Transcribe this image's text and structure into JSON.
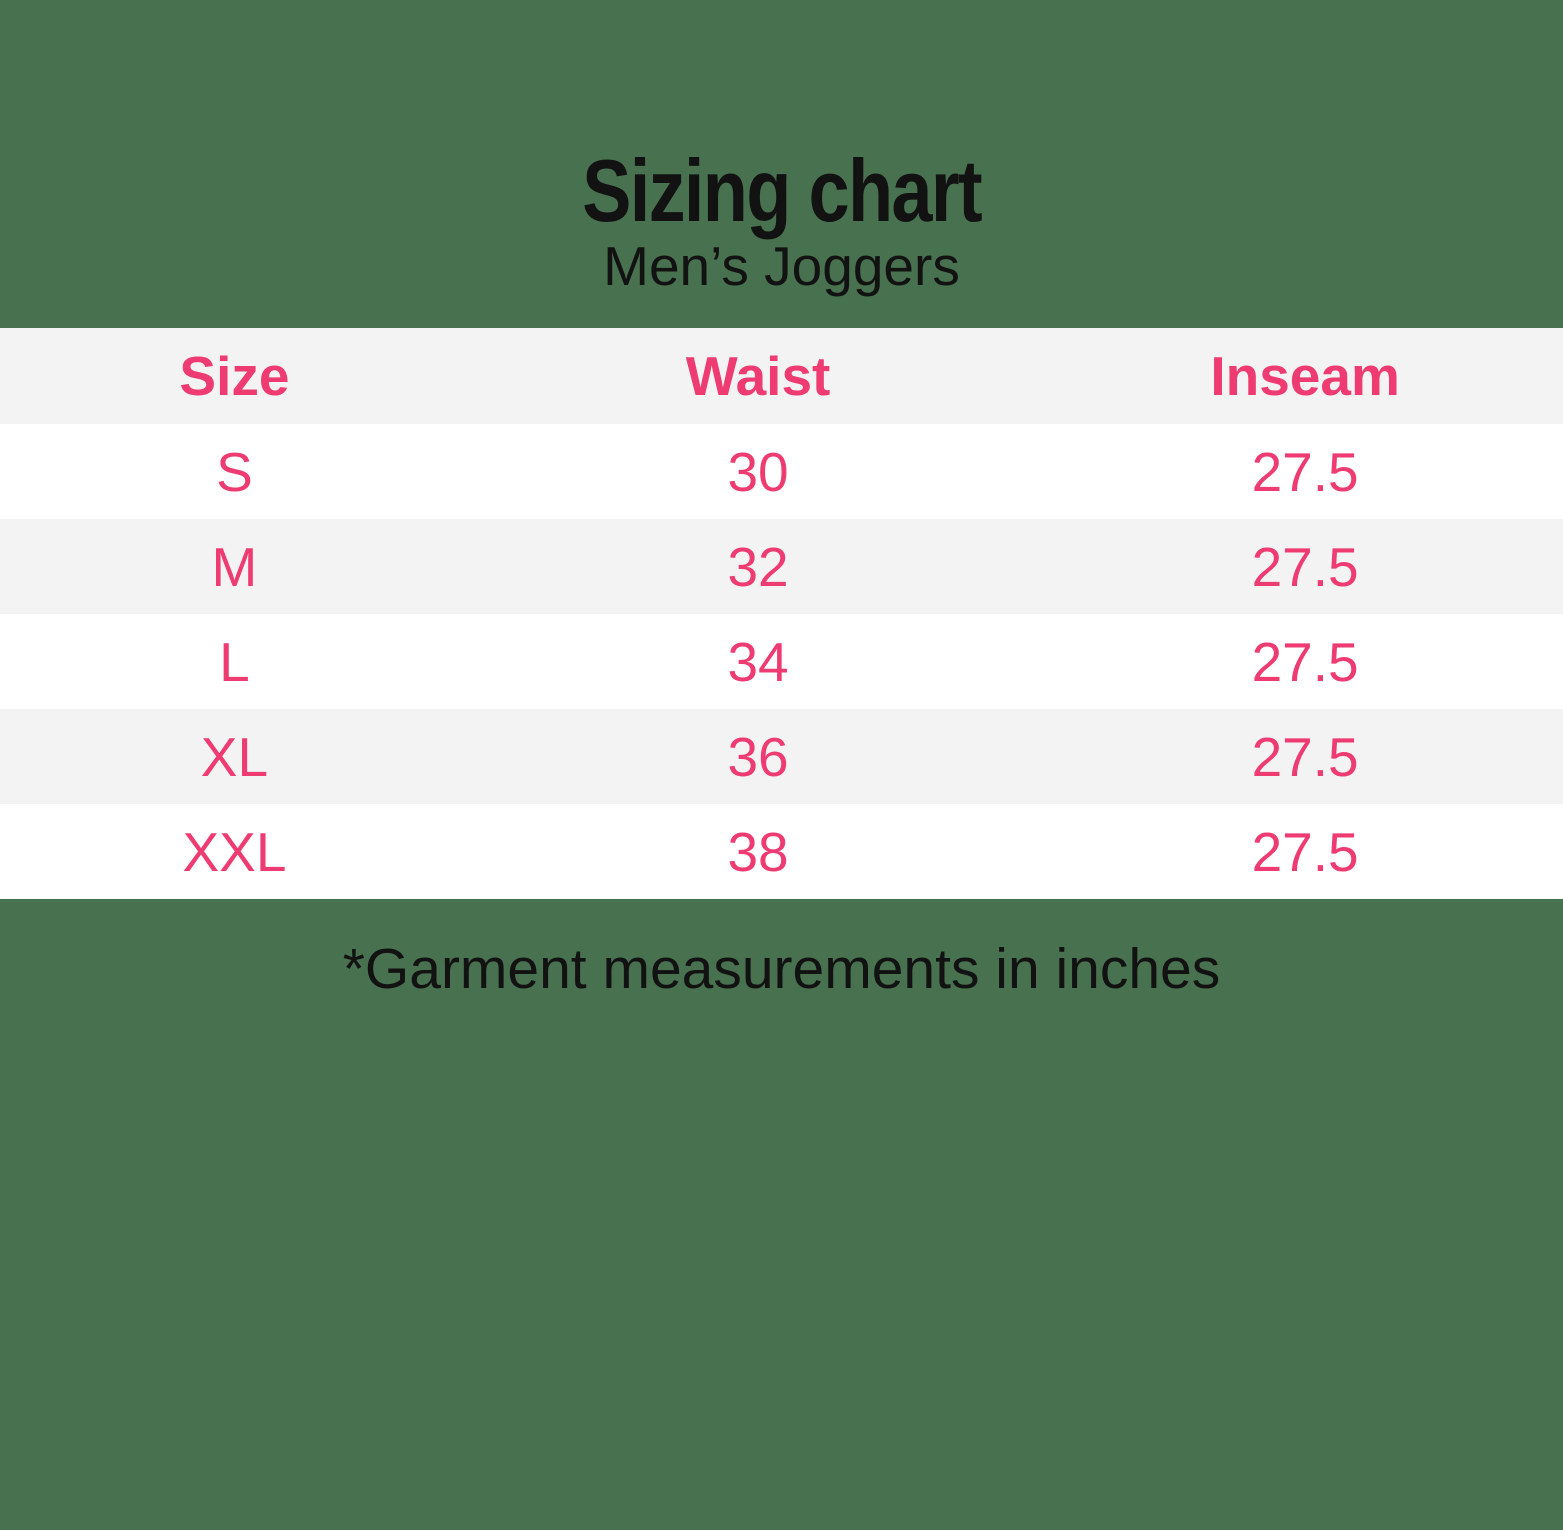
{
  "page": {
    "title": "Sizing chart",
    "subtitle": "Men’s Joggers",
    "footnote": "*Garment measurements in inches"
  },
  "table": {
    "headers": [
      "Size",
      "Waist",
      "Inseam"
    ],
    "rows": [
      [
        "S",
        "30",
        "27.5"
      ],
      [
        "M",
        "32",
        "27.5"
      ],
      [
        "L",
        "34",
        "27.5"
      ],
      [
        "XL",
        "36",
        "27.5"
      ],
      [
        "XXL",
        "38",
        "27.5"
      ]
    ]
  },
  "chart_data": {
    "type": "table",
    "title": "Sizing chart",
    "subtitle": "Men’s Joggers",
    "columns": [
      "Size",
      "Waist",
      "Inseam"
    ],
    "rows": [
      {
        "size": "S",
        "waist": 30,
        "inseam": 27.5
      },
      {
        "size": "M",
        "waist": 32,
        "inseam": 27.5
      },
      {
        "size": "L",
        "waist": 34,
        "inseam": 27.5
      },
      {
        "size": "XL",
        "waist": 36,
        "inseam": 27.5
      },
      {
        "size": "XXL",
        "waist": 38,
        "inseam": 27.5
      }
    ],
    "footnote": "*Garment measurements in inches",
    "units": "inches"
  },
  "colors": {
    "background_green": "#48714f",
    "accent_pink": "#ee3b71",
    "header_row_gray": "#f3f3f4",
    "row_white": "#ffffff",
    "text_dark": "#121212"
  }
}
